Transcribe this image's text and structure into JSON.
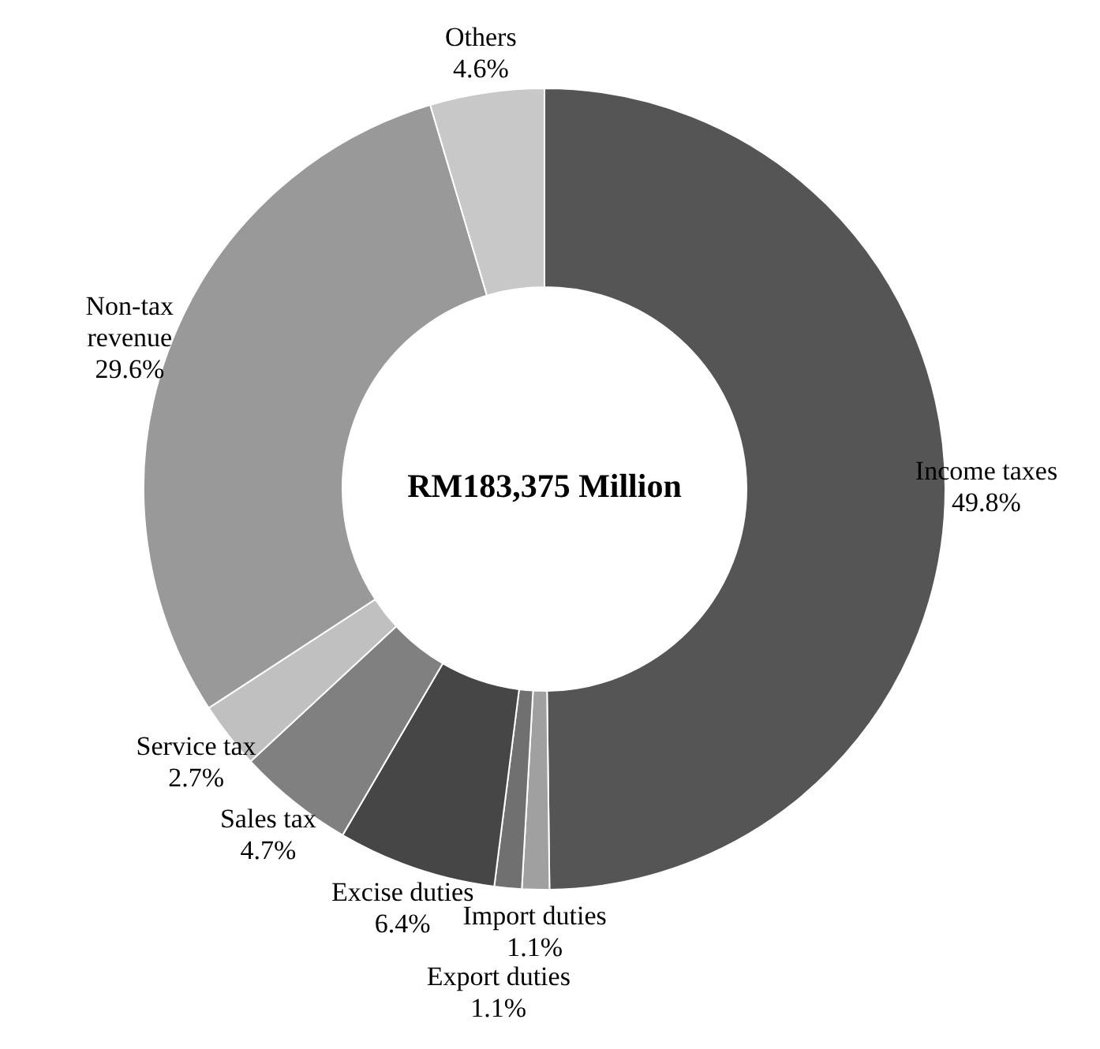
{
  "chart_data": {
    "type": "donut",
    "categories": [
      "Income taxes",
      "Import duties",
      "Export duties",
      "Excise duties",
      "Sales tax",
      "Service tax",
      "Non-tax revenue",
      "Others"
    ],
    "values": [
      49.8,
      1.1,
      1.1,
      6.4,
      4.7,
      2.7,
      29.6,
      4.6
    ],
    "value_labels": [
      "49.8%",
      "1.1%",
      "1.1%",
      "6.4%",
      "4.7%",
      "2.7%",
      "29.6%",
      "4.6%"
    ],
    "colors": [
      "#555555",
      "#a0a0a0",
      "#707070",
      "#464646",
      "#808080",
      "#c0c0c0",
      "#999999",
      "#c8c8c8"
    ],
    "annotations": [
      "RM183,375 Million"
    ],
    "legend": false
  }
}
